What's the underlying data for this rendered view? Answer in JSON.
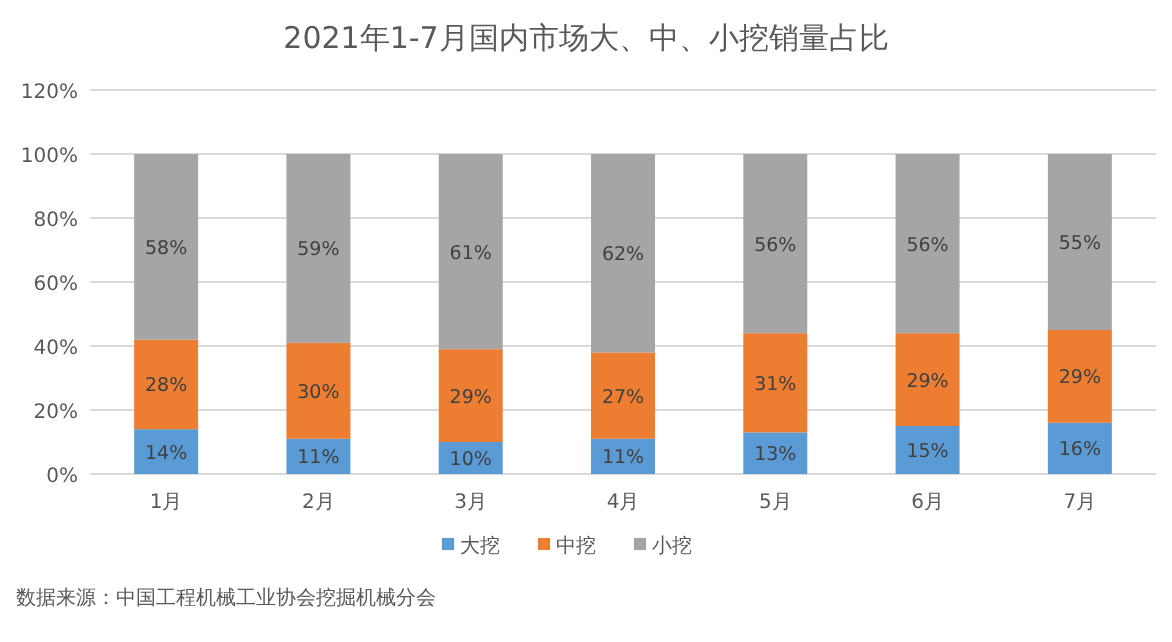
{
  "chart_data": {
    "type": "bar",
    "stacked": true,
    "title": "2021年1-7月国内市场大、中、小挖销量占比",
    "categories": [
      "1月",
      "2月",
      "3月",
      "4月",
      "5月",
      "6月",
      "7月"
    ],
    "series": [
      {
        "name": "大挖",
        "color": "#5b9bd5",
        "values": [
          14,
          11,
          10,
          11,
          13,
          15,
          16
        ],
        "value_labels": [
          "14%",
          "11%",
          "10%",
          "11%",
          "13%",
          "15%",
          "16%"
        ]
      },
      {
        "name": "中挖",
        "color": "#ed7d31",
        "values": [
          28,
          30,
          29,
          27,
          31,
          29,
          29
        ],
        "value_labels": [
          "28%",
          "30%",
          "29%",
          "27%",
          "31%",
          "29%",
          "29%"
        ]
      },
      {
        "name": "小挖",
        "color": "#a5a5a5",
        "values": [
          58,
          59,
          61,
          62,
          56,
          56,
          55
        ],
        "value_labels": [
          "58%",
          "59%",
          "61%",
          "62%",
          "56%",
          "56%",
          "55%"
        ]
      }
    ],
    "ylim": [
      0,
      120
    ],
    "yticks": [
      {
        "value": 0,
        "label": "0%"
      },
      {
        "value": 20,
        "label": "20%"
      },
      {
        "value": 40,
        "label": "40%"
      },
      {
        "value": 60,
        "label": "60%"
      },
      {
        "value": 80,
        "label": "80%"
      },
      {
        "value": 100,
        "label": "100%"
      },
      {
        "value": 120,
        "label": "120%"
      }
    ],
    "grid": "y",
    "legend": "bottom",
    "annotations": [
      "数据来源：中国工程机械工业协会挖掘机械分会"
    ]
  }
}
